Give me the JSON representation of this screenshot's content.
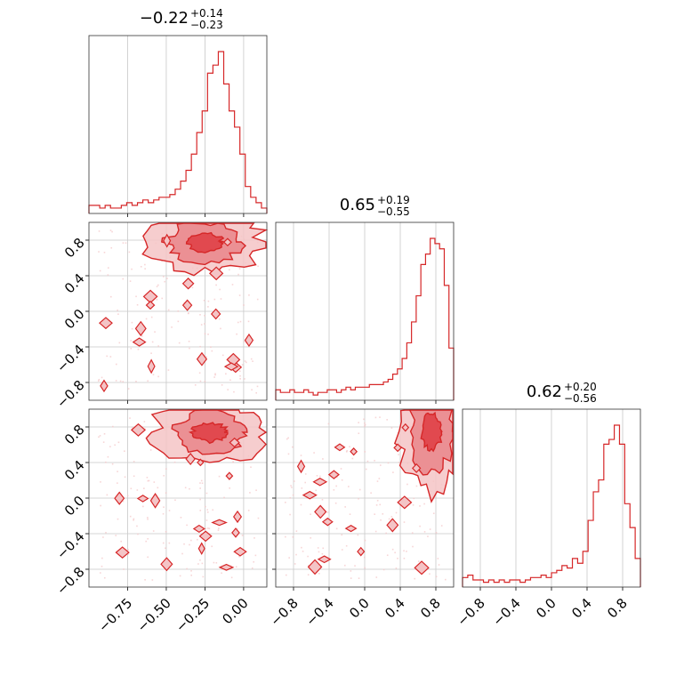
{
  "colors": {
    "accent": "#d62728",
    "fill_low": "#f4c4c6",
    "fill_mid": "#ea8a8e",
    "fill_high": "#e0464b",
    "grid": "#c8c8c8"
  },
  "chart_data": {
    "type": "corner",
    "titles": [
      {
        "value": "−0.22",
        "sup": "+0.14",
        "sub": "−0.23"
      },
      {
        "value": "0.65",
        "sup": "+0.19",
        "sub": "−0.55"
      },
      {
        "value": "0.62",
        "sup": "+0.20",
        "sub": "−0.56"
      }
    ],
    "axes": [
      {
        "range": [
          -1.0,
          0.15
        ],
        "ticks": [
          -0.75,
          -0.5,
          -0.25,
          0.0
        ],
        "tick_labels": [
          "−0.75",
          "−0.50",
          "−0.25",
          "0.00"
        ]
      },
      {
        "range": [
          -1.0,
          1.0
        ],
        "ticks": [
          -0.8,
          -0.4,
          0.0,
          0.4,
          0.8
        ],
        "tick_labels": [
          "−0.8",
          "−0.4",
          "0.0",
          "0.4",
          "0.8"
        ]
      },
      {
        "range": [
          -1.0,
          1.0
        ],
        "ticks": [
          -0.8,
          -0.4,
          0.0,
          0.4,
          0.8
        ],
        "tick_labels": [
          "−0.8",
          "−0.4",
          "0.0",
          "0.4",
          "0.8"
        ]
      }
    ],
    "grid": true,
    "histograms": [
      {
        "bin_edges": [
          -1.0,
          0.15
        ],
        "counts": [
          3,
          3,
          2,
          3,
          2,
          2,
          3,
          4,
          3,
          4,
          5,
          4,
          5,
          6,
          6,
          7,
          9,
          12,
          16,
          22,
          30,
          38,
          52,
          55,
          60,
          48,
          38,
          32,
          22,
          10,
          6,
          4,
          2
        ]
      },
      {
        "bin_edges": [
          -1.0,
          1.0
        ],
        "counts": [
          4,
          3,
          3,
          4,
          3,
          3,
          4,
          3,
          2,
          3,
          3,
          4,
          4,
          3,
          4,
          5,
          4,
          5,
          5,
          5,
          6,
          6,
          6,
          7,
          8,
          10,
          12,
          16,
          22,
          30,
          40,
          52,
          56,
          62,
          60,
          58,
          44,
          20
        ]
      },
      {
        "bin_edges": [
          -1.0,
          1.0
        ],
        "counts": [
          4,
          5,
          3,
          3,
          2,
          3,
          2,
          3,
          2,
          3,
          3,
          2,
          3,
          4,
          4,
          5,
          4,
          6,
          7,
          9,
          8,
          12,
          10,
          15,
          28,
          40,
          45,
          60,
          62,
          68,
          60,
          35,
          25,
          12
        ]
      }
    ],
    "contour_pairs": [
      {
        "x_axis": 0,
        "y_axis": 1,
        "mode": {
          "x": -0.25,
          "y": 0.78
        }
      },
      {
        "x_axis": 0,
        "y_axis": 2,
        "mode": {
          "x": -0.22,
          "y": 0.74
        }
      },
      {
        "x_axis": 1,
        "y_axis": 2,
        "mode": {
          "x": 0.75,
          "y": 0.75
        }
      }
    ]
  }
}
